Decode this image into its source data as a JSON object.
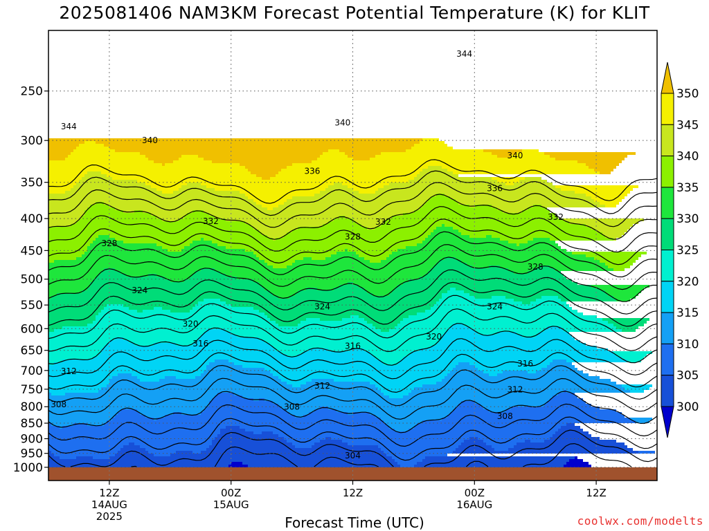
{
  "title": "2025081406 NAM3KM Forecast Potential Temperature (K) for KLIT",
  "credit": "coolwx.com/modelts",
  "chart_data": {
    "type": "heatmap",
    "title": "2025081406 NAM3KM Forecast Potential Temperature (K) for KLIT",
    "xlabel": "Forecast Time (UTC)",
    "ylabel": "",
    "y_scale": "log",
    "y_axis_units": "hPa",
    "ylim": [
      1050,
      200
    ],
    "y_ticks": [
      250,
      300,
      350,
      400,
      450,
      500,
      550,
      600,
      650,
      700,
      750,
      800,
      850,
      900,
      950,
      1000
    ],
    "x_unit": "hours",
    "xlim": [
      0,
      60
    ],
    "x_ticks": [
      {
        "hour": 6,
        "lines": [
          "12Z",
          "14AUG",
          "2025"
        ]
      },
      {
        "hour": 18,
        "lines": [
          "00Z",
          "15AUG"
        ]
      },
      {
        "hour": 30,
        "lines": [
          "12Z"
        ]
      },
      {
        "hour": 42,
        "lines": [
          "00Z",
          "16AUG"
        ]
      },
      {
        "hour": 54,
        "lines": [
          "12Z"
        ]
      }
    ],
    "colorbar": {
      "levels": [
        300,
        305,
        310,
        315,
        320,
        325,
        330,
        335,
        340,
        345,
        350
      ],
      "colors": [
        "#0000cc",
        "#1750d8",
        "#1e6ff0",
        "#14a0f5",
        "#00d4f5",
        "#00f0d0",
        "#00dc78",
        "#1ee63c",
        "#8cf000",
        "#c8e61e",
        "#f5f000",
        "#f0c000"
      ]
    },
    "contour_labels": [
      {
        "value": 344,
        "hour": 2,
        "pressure": 285
      },
      {
        "value": 344,
        "hour": 41,
        "pressure": 218
      },
      {
        "value": 340,
        "hour": 10,
        "pressure": 300
      },
      {
        "value": 340,
        "hour": 29,
        "pressure": 281
      },
      {
        "value": 340,
        "hour": 46,
        "pressure": 317
      },
      {
        "value": 336,
        "hour": 26,
        "pressure": 336
      },
      {
        "value": 336,
        "hour": 44,
        "pressure": 358
      },
      {
        "value": 332,
        "hour": 16,
        "pressure": 404
      },
      {
        "value": 332,
        "hour": 33,
        "pressure": 405
      },
      {
        "value": 332,
        "hour": 50,
        "pressure": 398
      },
      {
        "value": 328,
        "hour": 6,
        "pressure": 438
      },
      {
        "value": 328,
        "hour": 30,
        "pressure": 428
      },
      {
        "value": 328,
        "hour": 48,
        "pressure": 478
      },
      {
        "value": 324,
        "hour": 9,
        "pressure": 521
      },
      {
        "value": 324,
        "hour": 27,
        "pressure": 553
      },
      {
        "value": 324,
        "hour": 44,
        "pressure": 553
      },
      {
        "value": 320,
        "hour": 14,
        "pressure": 590
      },
      {
        "value": 320,
        "hour": 38,
        "pressure": 618
      },
      {
        "value": 316,
        "hour": 15,
        "pressure": 634
      },
      {
        "value": 316,
        "hour": 30,
        "pressure": 640
      },
      {
        "value": 316,
        "hour": 47,
        "pressure": 683
      },
      {
        "value": 312,
        "hour": 2,
        "pressure": 702
      },
      {
        "value": 312,
        "hour": 27,
        "pressure": 741
      },
      {
        "value": 312,
        "hour": 46,
        "pressure": 751
      },
      {
        "value": 308,
        "hour": 1,
        "pressure": 793
      },
      {
        "value": 308,
        "hour": 24,
        "pressure": 801
      },
      {
        "value": 308,
        "hour": 45,
        "pressure": 829
      },
      {
        "value": 304,
        "hour": 30,
        "pressure": 958
      }
    ]
  }
}
